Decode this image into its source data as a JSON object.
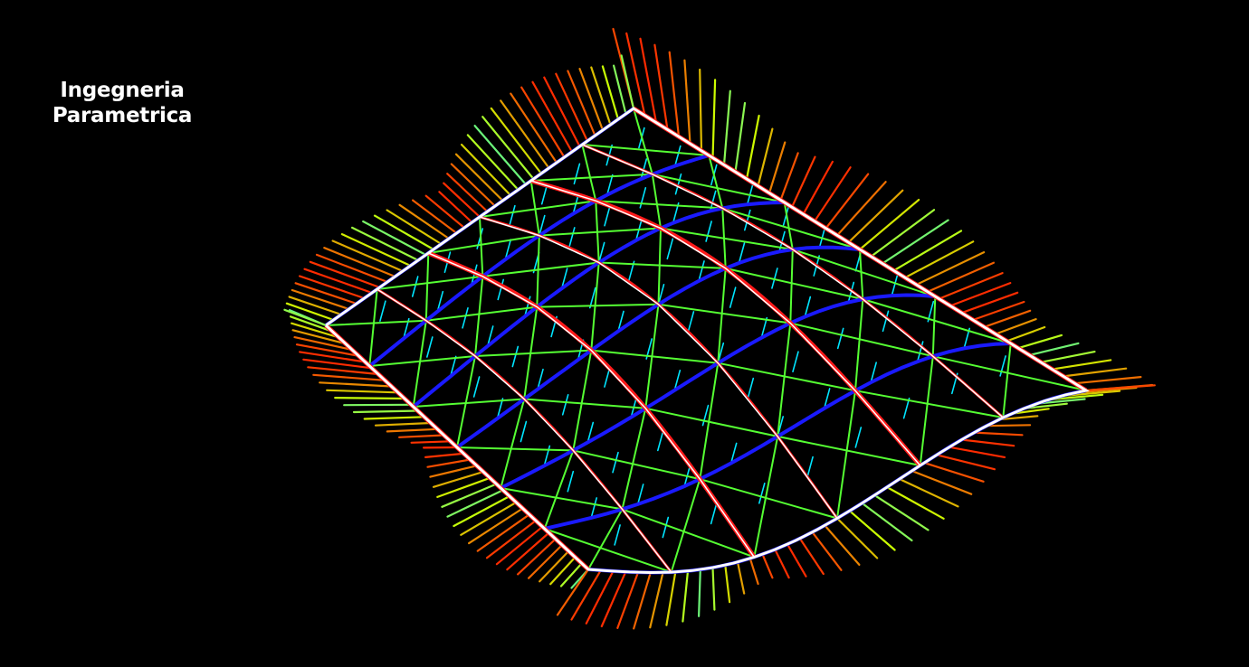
{
  "caption": {
    "line1": "Ingegneria",
    "line2": "Parametrica"
  },
  "render": {
    "icon": "parametric-surface-wireframe",
    "background": "#000000",
    "colors": {
      "boundary": "#ffffff",
      "main_ribs": "#ff1a1a",
      "secondary_ribs": "#1a1aff",
      "diagonals": "#55ff33",
      "vector_low": "#00e5ff",
      "vector_mid": "#ccff00",
      "vector_high": "#ff2a00"
    }
  }
}
